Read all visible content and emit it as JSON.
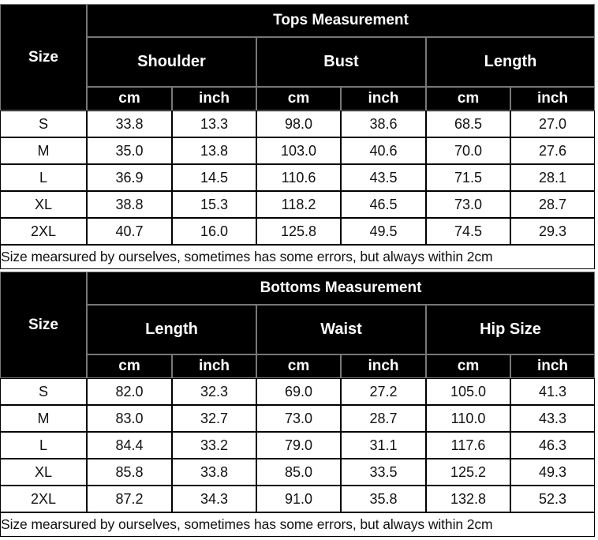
{
  "tables": [
    {
      "title": "Tops Measurement",
      "size_label": "Size",
      "groups": [
        "Shoulder",
        "Bust",
        "Length"
      ],
      "units": [
        "cm",
        "inch",
        "cm",
        "inch",
        "cm",
        "inch"
      ],
      "rows": [
        [
          "S",
          "33.8",
          "13.3",
          "98.0",
          "38.6",
          "68.5",
          "27.0"
        ],
        [
          "M",
          "35.0",
          "13.8",
          "103.0",
          "40.6",
          "70.0",
          "27.6"
        ],
        [
          "L",
          "36.9",
          "14.5",
          "110.6",
          "43.5",
          "71.5",
          "28.1"
        ],
        [
          "XL",
          "38.8",
          "15.3",
          "118.2",
          "46.5",
          "73.0",
          "28.7"
        ],
        [
          "2XL",
          "40.7",
          "16.0",
          "125.8",
          "49.5",
          "74.5",
          "29.3"
        ]
      ],
      "note": "Size mearsured by ourselves, sometimes has some errors, but always within 2cm"
    },
    {
      "title": "Bottoms Measurement",
      "size_label": "Size",
      "groups": [
        "Length",
        "Waist",
        "Hip Size"
      ],
      "units": [
        "cm",
        "inch",
        "cm",
        "inch",
        "cm",
        "inch"
      ],
      "rows": [
        [
          "S",
          "82.0",
          "32.3",
          "69.0",
          "27.2",
          "105.0",
          "41.3"
        ],
        [
          "M",
          "83.0",
          "32.7",
          "73.0",
          "28.7",
          "110.0",
          "43.3"
        ],
        [
          "L",
          "84.4",
          "33.2",
          "79.0",
          "31.1",
          "117.6",
          "46.3"
        ],
        [
          "XL",
          "85.8",
          "33.8",
          "85.0",
          "33.5",
          "125.2",
          "49.3"
        ],
        [
          "2XL",
          "87.2",
          "34.3",
          "91.0",
          "35.8",
          "132.8",
          "52.3"
        ]
      ],
      "note": "Size mearsured by ourselves, sometimes has some errors, but always within 2cm"
    }
  ]
}
